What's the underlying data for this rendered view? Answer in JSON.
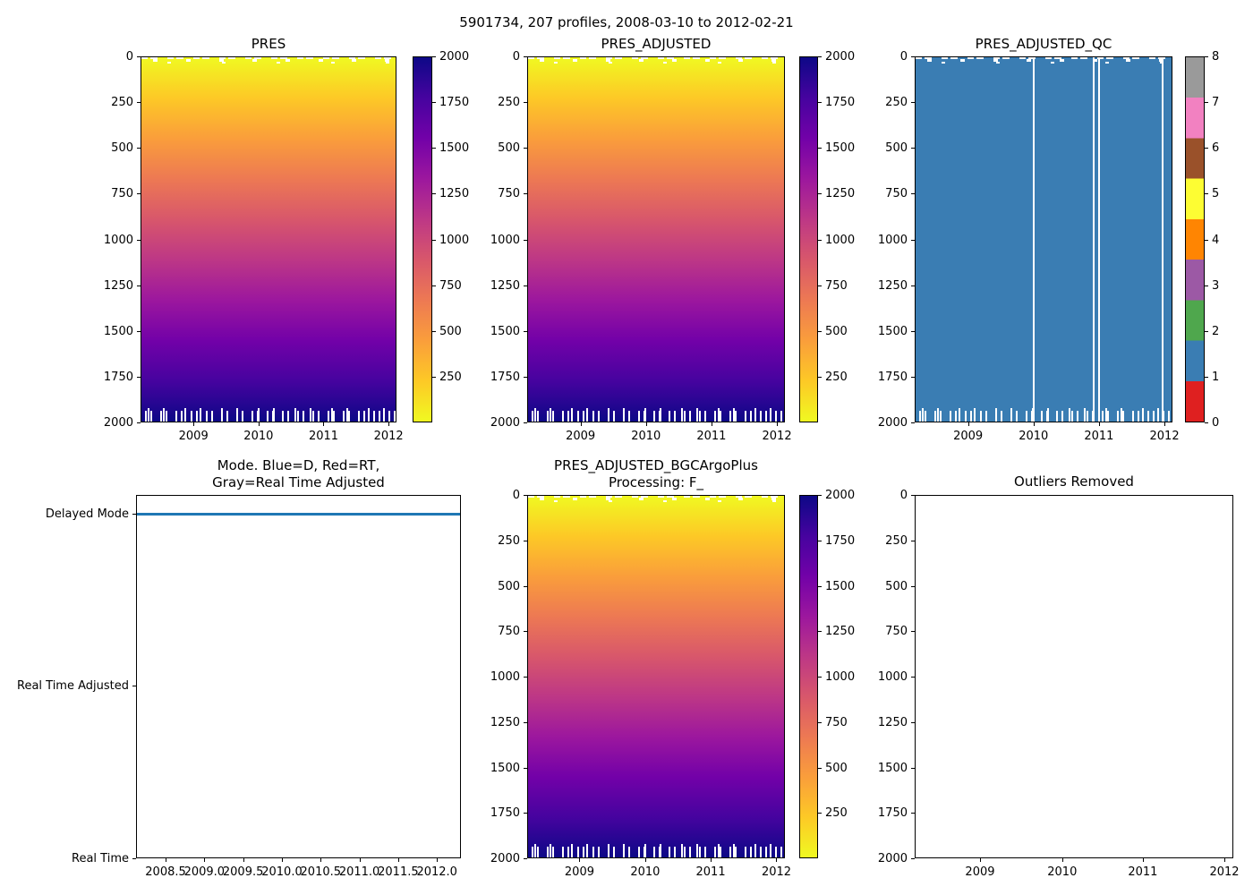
{
  "figure": {
    "title": "5901734, 207 profiles, 2008-03-10 to 2012-02-21",
    "platform_id": "5901734",
    "n_profiles": 207,
    "date_start": "2008-03-10",
    "date_end": "2012-02-21"
  },
  "colors": {
    "plasma_stops_top_to_bottom": [
      "#f0f921",
      "#fdc926",
      "#fa9e3b",
      "#ed7953",
      "#d8576b",
      "#bd3786",
      "#9c179e",
      "#7201a8",
      "#46039f",
      "#0d0887"
    ],
    "qc_scale_bottom_to_top": [
      "#df2020",
      "#3a7db3",
      "#4fa74d",
      "#9c59a5",
      "#ff8502",
      "#fdfd33",
      "#9a512a",
      "#f281c1",
      "#9a9a9a"
    ],
    "qc_dominant_fill": "#3a7db3",
    "mode_line": "#1f77b4"
  },
  "chart_data": [
    {
      "type": "heatmap",
      "title": "PRES",
      "x_ticks": [
        "2009",
        "2010",
        "2011",
        "2012"
      ],
      "y_ticks": [
        "0",
        "250",
        "500",
        "750",
        "1000",
        "1250",
        "1500",
        "1750",
        "2000"
      ],
      "x_range": [
        2008.17,
        2012.15
      ],
      "y_range": [
        0,
        2000
      ],
      "colorbar_ticks": [
        "2000",
        "1750",
        "1500",
        "1250",
        "1000",
        "750",
        "500",
        "250"
      ],
      "colorbar_range": [
        0,
        2000
      ],
      "colormap": "plasma_r",
      "values_summary": "pressure equals depth: 0 dbar (yellow) at surface grading to 2000 dbar (navy) at bottom for every profile; ragged white comb at bottom where profiles end shallower than 2000"
    },
    {
      "type": "heatmap",
      "title": "PRES_ADJUSTED",
      "x_ticks": [
        "2009",
        "2010",
        "2011",
        "2012"
      ],
      "y_ticks": [
        "0",
        "250",
        "500",
        "750",
        "1000",
        "1250",
        "1500",
        "1750",
        "2000"
      ],
      "x_range": [
        2008.17,
        2012.15
      ],
      "y_range": [
        0,
        2000
      ],
      "colorbar_ticks": [
        "2000",
        "1750",
        "1500",
        "1250",
        "1000",
        "750",
        "500",
        "250"
      ],
      "colorbar_range": [
        0,
        2000
      ],
      "colormap": "plasma_r",
      "values_summary": "same gradient as PRES: 0 at surface to 2000 dbar at depth"
    },
    {
      "type": "heatmap",
      "title": "PRES_ADJUSTED_QC",
      "x_ticks": [
        "2009",
        "2010",
        "2011",
        "2012"
      ],
      "y_ticks": [
        "0",
        "250",
        "500",
        "750",
        "1000",
        "1250",
        "1500",
        "1750",
        "2000"
      ],
      "x_range": [
        2008.17,
        2012.15
      ],
      "y_range": [
        0,
        2000
      ],
      "colorbar_ticks": [
        "8",
        "7",
        "6",
        "5",
        "4",
        "3",
        "2",
        "1",
        "0"
      ],
      "colorbar_range": [
        0,
        8
      ],
      "dominant_value": 1,
      "missing_profile_columns_x": [
        2010.0,
        2010.95,
        2011.03,
        2011.97
      ],
      "values_summary": "QC flag = 1 (blue) everywhere; white vertical gaps mark missing profiles"
    },
    {
      "type": "line",
      "title_line1": "Mode. Blue=D, Red=RT,",
      "title_line2": "Gray=Real Time Adjusted",
      "x_ticks": [
        "2008.5",
        "2009.0",
        "2009.5",
        "2010.0",
        "2010.5",
        "2011.0",
        "2011.5",
        "2012.0"
      ],
      "y_ticks": [
        "Delayed Mode",
        "Real Time Adjusted",
        "Real Time"
      ],
      "x_range": [
        2008.12,
        2012.31
      ],
      "series": [
        {
          "name": "mode",
          "value": "Delayed Mode",
          "color": "#1f77b4",
          "description": "all 207 profiles are Delayed Mode: flat blue line at Delayed Mode level from 2008-03-10 to 2012-02-21"
        }
      ]
    },
    {
      "type": "heatmap",
      "title_line1": "PRES_ADJUSTED_BGCArgoPlus",
      "title_line2": "Processing: F_",
      "x_ticks": [
        "2009",
        "2010",
        "2011",
        "2012"
      ],
      "y_ticks": [
        "0",
        "250",
        "500",
        "750",
        "1000",
        "1250",
        "1500",
        "1750",
        "2000"
      ],
      "x_range": [
        2008.17,
        2012.15
      ],
      "y_range": [
        0,
        2000
      ],
      "colorbar_ticks": [
        "2000",
        "1750",
        "1500",
        "1250",
        "1000",
        "750",
        "500",
        "250"
      ],
      "colorbar_range": [
        0,
        2000
      ],
      "colormap": "plasma_r",
      "values_summary": "same gradient as PRES: 0 at surface to 2000 dbar at depth"
    },
    {
      "type": "empty",
      "title": "Outliers Removed",
      "x_ticks": [
        "2009",
        "2010",
        "2011",
        "2012"
      ],
      "y_ticks": [
        "0",
        "250",
        "500",
        "750",
        "1000",
        "1250",
        "1500",
        "1750",
        "2000"
      ],
      "x_range": [
        2008.2,
        2012.11
      ],
      "y_range": [
        0,
        2000
      ],
      "values_summary": "empty axes - no outliers plotted"
    }
  ]
}
